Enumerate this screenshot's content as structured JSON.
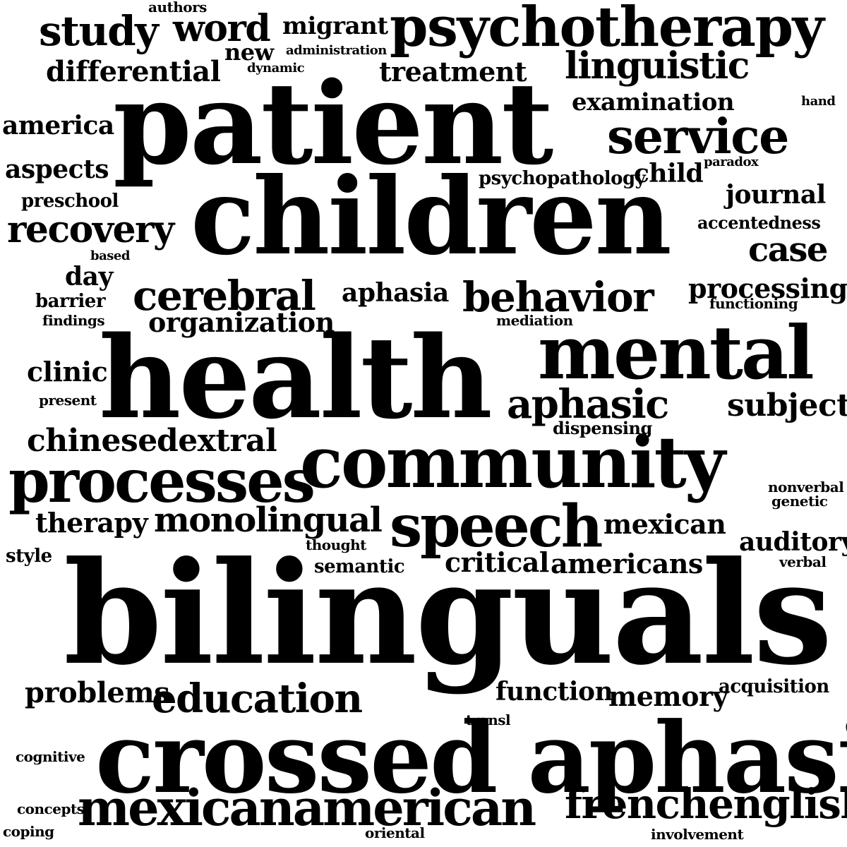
{
  "colors": {
    "background": "#ffffff",
    "text": "#000000"
  },
  "words": [
    "authors",
    "study",
    "word",
    "migrant",
    "psychotherapy",
    "new",
    "administration",
    "dynamic",
    "differential",
    "treatment",
    "linguistic",
    "patient",
    "examination",
    "hand",
    "america",
    "service",
    "aspects",
    "psychopathology",
    "child",
    "paradox",
    "children",
    "journal",
    "preschool",
    "recovery",
    "accentedness",
    "case",
    "based",
    "day",
    "processing",
    "cerebral",
    "aphasia",
    "behavior",
    "barrier",
    "functioning",
    "findings",
    "organization",
    "mediation",
    "health",
    "mental",
    "clinic",
    "present",
    "aphasic",
    "subject",
    "dispensing",
    "chinese",
    "dextral",
    "community",
    "processes",
    "nonverbal",
    "genetic",
    "speech",
    "therapy",
    "monolingual",
    "mexican",
    "style",
    "thought",
    "auditory",
    "semantic",
    "critical",
    "americans",
    "verbal",
    "bilinguals",
    "problems",
    "education",
    "function",
    "memory",
    "acquisition",
    "transl",
    "cognitive",
    "crossed aphasia",
    "concepts",
    "mexicanamerican",
    "frenchenglish",
    "coping",
    "oriental",
    "involvement"
  ]
}
